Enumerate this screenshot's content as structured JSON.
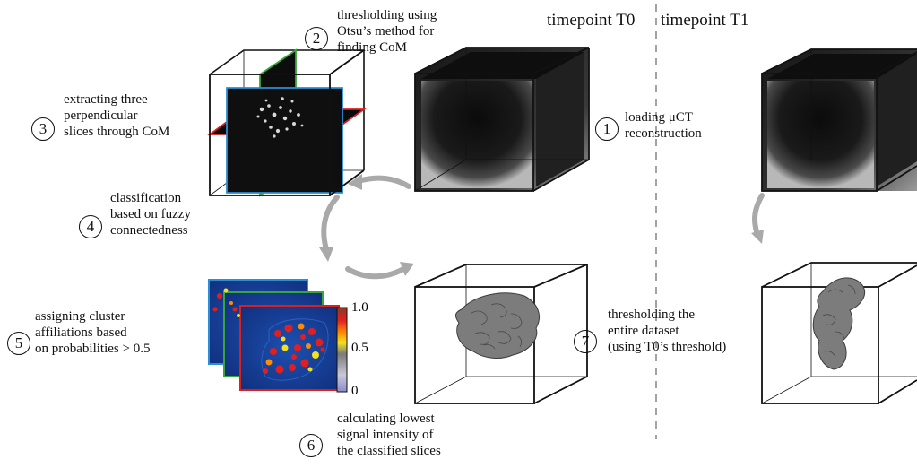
{
  "timepoints": {
    "t0": "timepoint T0",
    "t1": "timepoint T1"
  },
  "steps": [
    {
      "number": "1",
      "lines": [
        "loading μCT",
        "reconstruction"
      ]
    },
    {
      "number": "2",
      "lines": [
        "thresholding using",
        "Otsu’s method for",
        "finding CoM"
      ]
    },
    {
      "number": "3",
      "lines": [
        "extracting three",
        "perpendicular",
        "slices through CoM"
      ]
    },
    {
      "number": "4",
      "lines": [
        "classification",
        "based on fuzzy",
        "connectedness"
      ]
    },
    {
      "number": "5",
      "lines": [
        "assigning cluster",
        "affiliations based",
        "on probabilities > 0.5"
      ]
    },
    {
      "number": "6",
      "lines": [
        "calculating lowest",
        "signal intensity of",
        "the classified slices"
      ]
    },
    {
      "number": "7",
      "lines": [
        "thresholding the",
        "entire dataset",
        "(using T0’s threshold)"
      ]
    }
  ],
  "colorbar": {
    "ticks": [
      "1.0",
      "0.5",
      "0"
    ],
    "colors": [
      "#8a3a2a",
      "#e02020",
      "#ff8c00",
      "#f2e020",
      "#7a7a7a",
      "#c8c8d8",
      "#8c8ccc"
    ]
  },
  "slice_border_colors": {
    "red": "#d92020",
    "green": "#3aa53a",
    "blue": "#2a8fd6"
  },
  "arrow_color": "#a9a9a9"
}
